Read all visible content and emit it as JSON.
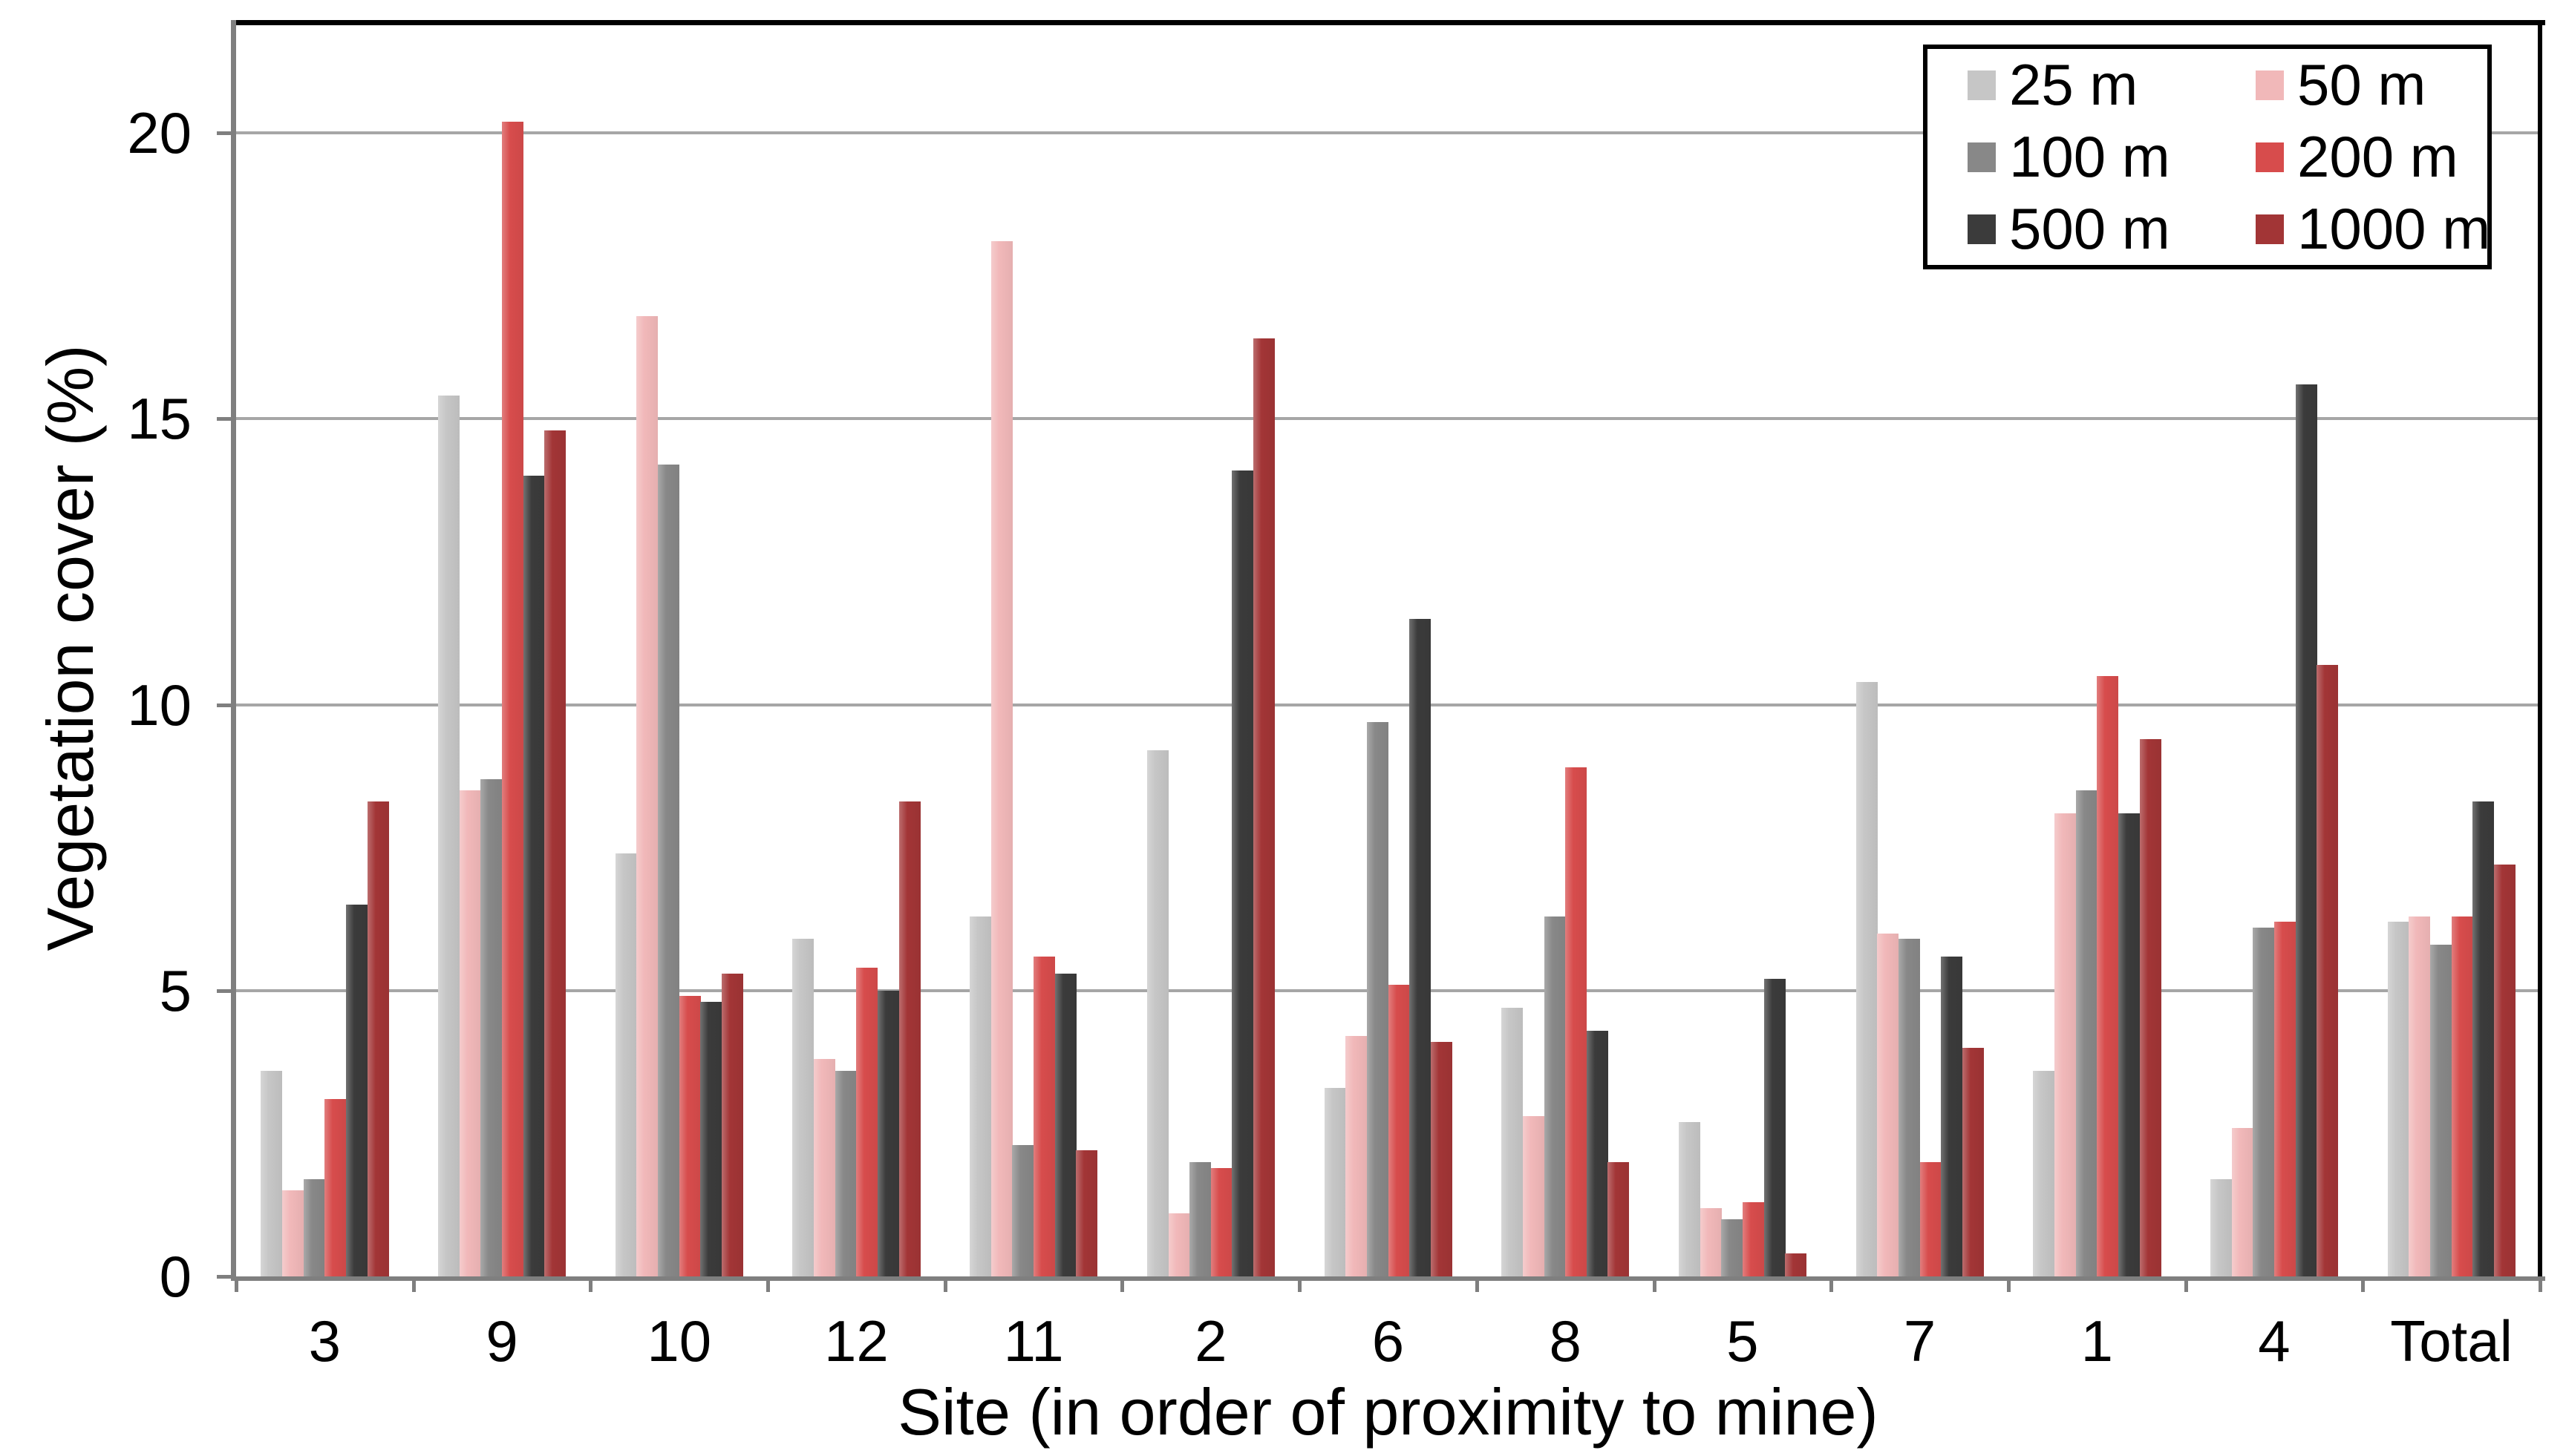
{
  "chart_data": {
    "type": "bar",
    "title": "",
    "xlabel": "Site (in order of proximity to mine)",
    "ylabel": "Vegetation cover (%)",
    "ylim": [
      0,
      22
    ],
    "y_ticks": [
      0,
      5,
      10,
      15,
      20
    ],
    "grid": true,
    "legend_position": "top-right-inside",
    "categories": [
      "3",
      "9",
      "10",
      "12",
      "11",
      "2",
      "6",
      "8",
      "5",
      "7",
      "1",
      "4",
      "Total"
    ],
    "series": [
      {
        "name": "25 m",
        "color": "#c6c6c6",
        "values": [
          3.6,
          15.4,
          7.4,
          5.9,
          6.3,
          9.2,
          3.3,
          4.7,
          2.7,
          10.4,
          3.6,
          1.7,
          6.2
        ]
      },
      {
        "name": "50 m",
        "color": "#f1b8b9",
        "values": [
          1.5,
          8.5,
          16.8,
          3.8,
          18.1,
          1.1,
          4.2,
          2.8,
          1.2,
          6.0,
          8.1,
          2.6,
          6.3
        ]
      },
      {
        "name": "100 m",
        "color": "#888888",
        "values": [
          1.7,
          8.7,
          14.2,
          3.6,
          2.3,
          2.0,
          9.7,
          6.3,
          1.0,
          5.9,
          8.5,
          6.1,
          5.8
        ]
      },
      {
        "name": "200 m",
        "color": "#d74c4c",
        "values": [
          3.1,
          20.2,
          4.9,
          5.4,
          5.6,
          1.9,
          5.1,
          8.9,
          1.3,
          2.0,
          10.5,
          6.2,
          6.3
        ]
      },
      {
        "name": "500 m",
        "color": "#3b3b3b",
        "values": [
          6.5,
          14.0,
          4.8,
          5.0,
          5.3,
          14.1,
          11.5,
          4.3,
          5.2,
          5.6,
          8.1,
          15.6,
          8.3
        ]
      },
      {
        "name": "1000 m",
        "color": "#a23536",
        "values": [
          8.3,
          14.8,
          5.3,
          8.3,
          2.2,
          16.4,
          4.1,
          2.0,
          0.4,
          4.0,
          9.4,
          10.7,
          7.2
        ]
      }
    ],
    "colors": {
      "gridline": "#a6a6a6",
      "axis": "#7f7f7f",
      "frame": "#000000",
      "text": "#000000",
      "background": "#ffffff"
    }
  }
}
